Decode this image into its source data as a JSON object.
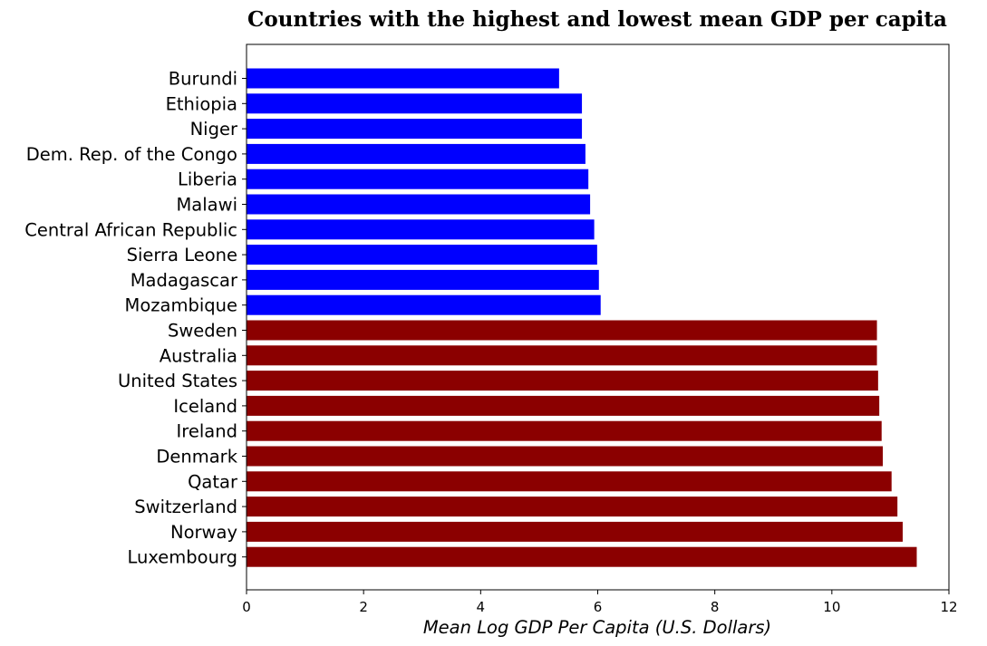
{
  "chart_data": {
    "type": "bar",
    "orientation": "horizontal",
    "title": "Countries with the highest and lowest mean GDP per capita",
    "xlabel": "Mean Log GDP Per Capita (U.S. Dollars)",
    "ylabel": "",
    "xlim": [
      0,
      12
    ],
    "xticks": [
      0,
      2,
      4,
      6,
      8,
      10,
      12
    ],
    "grid": false,
    "categories": [
      "Burundi",
      "Ethiopia",
      "Niger",
      "Dem. Rep. of the Congo",
      "Liberia",
      "Malawi",
      "Central African Republic",
      "Sierra Leone",
      "Madagascar",
      "Mozambique",
      "Sweden",
      "Australia",
      "United States",
      "Iceland",
      "Ireland",
      "Denmark",
      "Qatar",
      "Switzerland",
      "Norway",
      "Luxembourg"
    ],
    "values": [
      5.34,
      5.73,
      5.73,
      5.79,
      5.84,
      5.87,
      5.94,
      5.99,
      6.02,
      6.05,
      10.77,
      10.77,
      10.79,
      10.81,
      10.85,
      10.87,
      11.02,
      11.12,
      11.21,
      11.45
    ],
    "colors": [
      "#0000ff",
      "#0000ff",
      "#0000ff",
      "#0000ff",
      "#0000ff",
      "#0000ff",
      "#0000ff",
      "#0000ff",
      "#0000ff",
      "#0000ff",
      "#8b0000",
      "#8b0000",
      "#8b0000",
      "#8b0000",
      "#8b0000",
      "#8b0000",
      "#8b0000",
      "#8b0000",
      "#8b0000",
      "#8b0000"
    ]
  }
}
